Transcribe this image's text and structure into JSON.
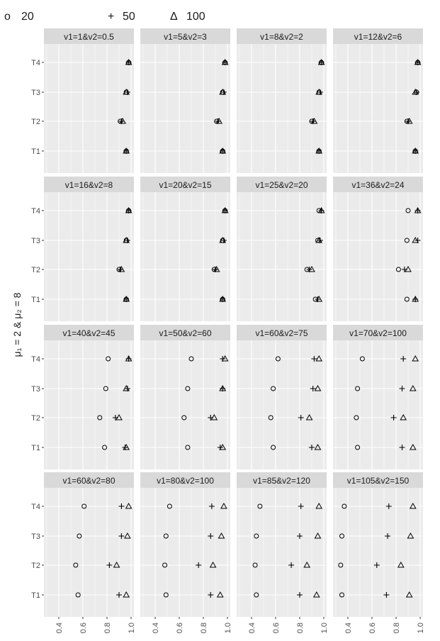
{
  "chart_data": {
    "type": "scatter",
    "ylabel": "μ₁ = 2 & μ₂ = 8",
    "xlim": [
      0.3,
      1.0
    ],
    "x_ticks": [
      "0.4",
      "0.6",
      "0.8",
      "1.0"
    ],
    "categories": [
      "T1",
      "T2",
      "T3",
      "T4"
    ],
    "legend": {
      "position": "top-left",
      "entries": [
        {
          "symbol": "o",
          "label": "20"
        },
        {
          "symbol": "+",
          "label": "50"
        },
        {
          "symbol": "Δ",
          "label": "100"
        }
      ]
    },
    "panels": [
      {
        "title": "v1=1&v2=0.5",
        "values": {
          "20": [
            0.96,
            0.91,
            0.96,
            0.98
          ],
          "50": [
            0.96,
            0.92,
            0.97,
            0.98
          ],
          "100": [
            0.96,
            0.93,
            0.96,
            0.98
          ]
        }
      },
      {
        "title": "v1=5&v2=3",
        "values": {
          "20": [
            0.96,
            0.91,
            0.96,
            0.98
          ],
          "50": [
            0.96,
            0.92,
            0.97,
            0.98
          ],
          "100": [
            0.96,
            0.93,
            0.96,
            0.98
          ]
        }
      },
      {
        "title": "v1=8&v2=2",
        "values": {
          "20": [
            0.96,
            0.9,
            0.96,
            0.98
          ],
          "50": [
            0.96,
            0.91,
            0.97,
            0.98
          ],
          "100": [
            0.96,
            0.92,
            0.96,
            0.98
          ]
        }
      },
      {
        "title": "v1=12&v2=6",
        "values": {
          "20": [
            0.96,
            0.89,
            0.97,
            0.98
          ],
          "50": [
            0.96,
            0.9,
            0.97,
            0.98
          ],
          "100": [
            0.96,
            0.91,
            0.96,
            0.98
          ]
        }
      },
      {
        "title": "v1=16&v2=8",
        "values": {
          "20": [
            0.96,
            0.9,
            0.96,
            0.98
          ],
          "50": [
            0.96,
            0.91,
            0.97,
            0.98
          ],
          "100": [
            0.96,
            0.92,
            0.96,
            0.98
          ]
        }
      },
      {
        "title": "v1=20&v2=15",
        "values": {
          "20": [
            0.96,
            0.89,
            0.96,
            0.98
          ],
          "50": [
            0.96,
            0.9,
            0.97,
            0.98
          ],
          "100": [
            0.96,
            0.91,
            0.96,
            0.98
          ]
        }
      },
      {
        "title": "v1=25&v2=20",
        "values": {
          "20": [
            0.93,
            0.86,
            0.95,
            0.96
          ],
          "50": [
            0.95,
            0.88,
            0.97,
            0.98
          ],
          "100": [
            0.96,
            0.9,
            0.96,
            0.98
          ]
        }
      },
      {
        "title": "v1=36&v2=24",
        "values": {
          "20": [
            0.89,
            0.82,
            0.89,
            0.9
          ],
          "50": [
            0.96,
            0.87,
            0.98,
            0.98
          ],
          "100": [
            0.96,
            0.9,
            0.96,
            0.98
          ]
        }
      },
      {
        "title": "v1=40&v2=45",
        "values": {
          "20": [
            0.78,
            0.74,
            0.79,
            0.81
          ],
          "50": [
            0.95,
            0.87,
            0.97,
            0.98
          ],
          "100": [
            0.96,
            0.9,
            0.96,
            0.98
          ]
        }
      },
      {
        "title": "v1=50&v2=60",
        "values": {
          "20": [
            0.67,
            0.64,
            0.67,
            0.7
          ],
          "50": [
            0.94,
            0.86,
            0.96,
            0.96
          ],
          "100": [
            0.96,
            0.89,
            0.96,
            0.98
          ]
        }
      },
      {
        "title": "v1=60&v2=75",
        "values": {
          "20": [
            0.58,
            0.56,
            0.58,
            0.62
          ],
          "50": [
            0.9,
            0.81,
            0.91,
            0.92
          ],
          "100": [
            0.95,
            0.88,
            0.95,
            0.96
          ]
        }
      },
      {
        "title": "v1=70&v2=100",
        "values": {
          "20": [
            0.48,
            0.47,
            0.48,
            0.52
          ],
          "50": [
            0.85,
            0.78,
            0.85,
            0.86
          ],
          "100": [
            0.94,
            0.86,
            0.94,
            0.96
          ]
        }
      },
      {
        "title": "v1=60&v2=80",
        "values": {
          "20": [
            0.56,
            0.54,
            0.57,
            0.61
          ],
          "50": [
            0.9,
            0.82,
            0.92,
            0.92
          ],
          "100": [
            0.96,
            0.88,
            0.97,
            0.98
          ]
        }
      },
      {
        "title": "v1=80&v2=100",
        "values": {
          "20": [
            0.49,
            0.48,
            0.49,
            0.52
          ],
          "50": [
            0.86,
            0.76,
            0.86,
            0.87
          ],
          "100": [
            0.94,
            0.88,
            0.95,
            0.97
          ]
        }
      },
      {
        "title": "v1=85&v2=120",
        "values": {
          "20": [
            0.44,
            0.43,
            0.44,
            0.47
          ],
          "50": [
            0.8,
            0.73,
            0.8,
            0.81
          ],
          "100": [
            0.94,
            0.86,
            0.95,
            0.96
          ]
        }
      },
      {
        "title": "v1=105&v2=150",
        "values": {
          "20": [
            0.35,
            0.34,
            0.35,
            0.37
          ],
          "50": [
            0.72,
            0.64,
            0.73,
            0.74
          ],
          "100": [
            0.91,
            0.84,
            0.92,
            0.94
          ]
        }
      }
    ],
    "grid": true,
    "colors": {
      "panel_bg": "#ebebeb",
      "strip_bg": "#d9d9d9",
      "grid": "#ffffff",
      "marker": "#000000"
    }
  }
}
